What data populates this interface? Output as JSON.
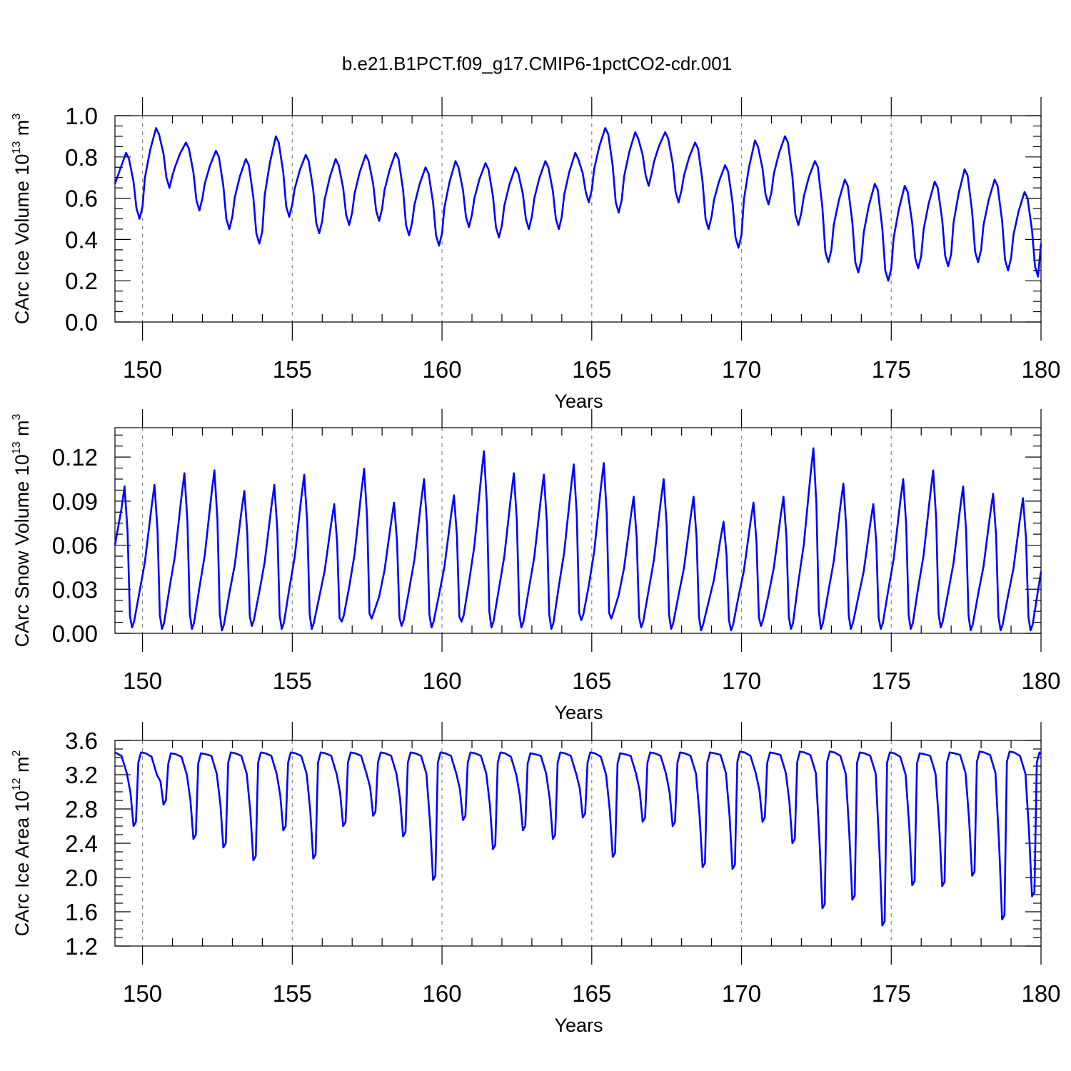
{
  "title": "b.e21.B1PCT.f09_g17.CMIP6-1pctCO2-cdr.001",
  "chart_data": [
    {
      "type": "line",
      "ylabel_main": "CArc Ice Volume 10",
      "ylabel_exp": "13",
      "ylabel_unit": " m",
      "ylabel_unit_exp": "3",
      "xlabel": "Years",
      "xlim": [
        149.08,
        180.0
      ],
      "ylim": [
        0.0,
        1.0
      ],
      "xticks": [
        150,
        155,
        160,
        165,
        170,
        175,
        180
      ],
      "xtick_labels": [
        "150",
        "155",
        "160",
        "165",
        "170",
        "175",
        "180"
      ],
      "yticks": [
        0.0,
        0.2,
        0.4,
        0.6,
        0.8,
        1.0
      ],
      "ytick_labels": [
        "0.0",
        "0.2",
        "0.4",
        "0.6",
        "0.8",
        "1.0"
      ],
      "grid": "vertical dashed at major x ticks",
      "series_color": "#0000ff",
      "years": [
        149,
        150,
        151,
        152,
        153,
        154,
        155,
        156,
        157,
        158,
        159,
        160,
        161,
        162,
        163,
        164,
        165,
        166,
        167,
        168,
        169,
        170,
        171,
        172,
        173,
        174,
        175,
        176,
        177,
        178,
        179
      ],
      "annual_max": [
        0.82,
        0.94,
        0.87,
        0.83,
        0.79,
        0.9,
        0.81,
        0.79,
        0.81,
        0.82,
        0.75,
        0.78,
        0.77,
        0.75,
        0.78,
        0.82,
        0.94,
        0.92,
        0.92,
        0.87,
        0.76,
        0.88,
        0.9,
        0.78,
        0.69,
        0.67,
        0.66,
        0.68,
        0.74,
        0.69,
        0.63
      ],
      "annual_min": [
        0.5,
        0.65,
        0.54,
        0.45,
        0.38,
        0.51,
        0.43,
        0.47,
        0.49,
        0.42,
        0.37,
        0.46,
        0.41,
        0.45,
        0.45,
        0.58,
        0.53,
        0.66,
        0.58,
        0.45,
        0.36,
        0.57,
        0.47,
        0.29,
        0.24,
        0.2,
        0.26,
        0.27,
        0.29,
        0.25,
        0.22
      ],
      "start_value": 0.67,
      "end_value": 0.38
    },
    {
      "type": "line",
      "ylabel_main": "CArc Snow Volume 10",
      "ylabel_exp": "13",
      "ylabel_unit": " m",
      "ylabel_unit_exp": "3",
      "xlabel": "Years",
      "xlim": [
        149.08,
        180.0
      ],
      "ylim": [
        0.0,
        0.14
      ],
      "xticks": [
        150,
        155,
        160,
        165,
        170,
        175,
        180
      ],
      "xtick_labels": [
        "150",
        "155",
        "160",
        "165",
        "170",
        "175",
        "180"
      ],
      "yticks": [
        0.0,
        0.03,
        0.06,
        0.09,
        0.12
      ],
      "ytick_labels": [
        "0.00",
        "0.03",
        "0.06",
        "0.09",
        "0.12"
      ],
      "grid": "vertical dashed at major x ticks",
      "series_color": "#0000ff",
      "years": [
        149,
        150,
        151,
        152,
        153,
        154,
        155,
        156,
        157,
        158,
        159,
        160,
        161,
        162,
        163,
        164,
        165,
        166,
        167,
        168,
        169,
        170,
        171,
        172,
        173,
        174,
        175,
        176,
        177,
        178,
        179
      ],
      "annual_max": [
        0.1,
        0.101,
        0.109,
        0.111,
        0.097,
        0.101,
        0.108,
        0.088,
        0.112,
        0.089,
        0.105,
        0.094,
        0.124,
        0.109,
        0.108,
        0.115,
        0.116,
        0.093,
        0.105,
        0.093,
        0.076,
        0.089,
        0.093,
        0.126,
        0.102,
        0.088,
        0.105,
        0.111,
        0.1,
        0.095,
        0.092
      ],
      "annual_min": [
        0.004,
        0.003,
        0.003,
        0.002,
        0.005,
        0.003,
        0.003,
        0.008,
        0.01,
        0.005,
        0.004,
        0.008,
        0.004,
        0.004,
        0.003,
        0.009,
        0.01,
        0.004,
        0.003,
        0.002,
        0.002,
        0.005,
        0.003,
        0.003,
        0.003,
        0.003,
        0.003,
        0.004,
        0.002,
        0.002,
        0.002
      ],
      "start_value": 0.06,
      "end_value": 0.042
    },
    {
      "type": "line",
      "ylabel_main": "CArc Ice Area 10",
      "ylabel_exp": "12",
      "ylabel_unit": " m",
      "ylabel_unit_exp": "2",
      "xlabel": "Years",
      "xlim": [
        149.08,
        180.0
      ],
      "ylim": [
        1.2,
        3.6
      ],
      "xticks": [
        150,
        155,
        160,
        165,
        170,
        175,
        180
      ],
      "xtick_labels": [
        "150",
        "155",
        "160",
        "165",
        "170",
        "175",
        "180"
      ],
      "yticks": [
        1.2,
        1.6,
        2.0,
        2.4,
        2.8,
        3.2,
        3.6
      ],
      "ytick_labels": [
        "1.2",
        "1.6",
        "2.0",
        "2.4",
        "2.8",
        "3.2",
        "3.6"
      ],
      "grid": "vertical dashed at major x ticks",
      "series_color": "#0000ff",
      "years": [
        149,
        150,
        151,
        152,
        153,
        154,
        155,
        156,
        157,
        158,
        159,
        160,
        161,
        162,
        163,
        164,
        165,
        166,
        167,
        168,
        169,
        170,
        171,
        172,
        173,
        174,
        175,
        176,
        177,
        178,
        179
      ],
      "annual_max": [
        3.46,
        3.45,
        3.45,
        3.46,
        3.46,
        3.46,
        3.46,
        3.46,
        3.46,
        3.46,
        3.46,
        3.46,
        3.46,
        3.45,
        3.46,
        3.46,
        3.45,
        3.46,
        3.46,
        3.46,
        3.47,
        3.46,
        3.47,
        3.47,
        3.46,
        3.46,
        3.45,
        3.46,
        3.47,
        3.47,
        3.46
      ],
      "annual_min": [
        2.6,
        2.85,
        2.45,
        2.35,
        2.2,
        2.55,
        2.22,
        2.6,
        2.72,
        2.48,
        1.97,
        2.67,
        2.33,
        2.55,
        2.45,
        2.7,
        2.24,
        2.65,
        2.6,
        2.12,
        2.1,
        2.65,
        2.4,
        1.64,
        1.74,
        1.44,
        1.91,
        1.9,
        2.02,
        1.51,
        1.78
      ],
      "start_value": 3.46,
      "end_value": 3.44
    }
  ]
}
